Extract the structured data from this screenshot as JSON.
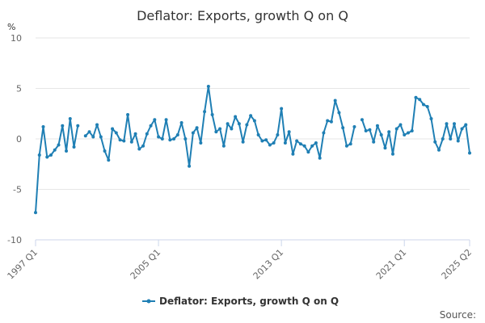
{
  "chart_data": {
    "type": "line",
    "title": "Deflator: Exports, growth Q on Q",
    "ylabel": "%",
    "xlabel": "",
    "ylim": [
      -10,
      10
    ],
    "y_ticks": [
      10,
      5,
      0,
      -5,
      -10
    ],
    "x_ticks": [
      {
        "index": 0,
        "label": "1997 Q1"
      },
      {
        "index": 32,
        "label": "2005 Q1"
      },
      {
        "index": 64,
        "label": "2013 Q1"
      },
      {
        "index": 96,
        "label": "2021 Q1"
      },
      {
        "index": 113,
        "label": "2025 Q2"
      }
    ],
    "x_start": "1997 Q1",
    "x_end": "2025 Q2",
    "grid": true,
    "legend_position": "bottom",
    "series": [
      {
        "name": "Deflator: Exports, growth Q on Q",
        "color": "#1f7fb4",
        "values": [
          -7.3,
          -1.6,
          1.2,
          -1.8,
          -1.6,
          -1.1,
          -0.6,
          1.3,
          -1.2,
          2.0,
          -0.8,
          1.3,
          null,
          0.3,
          0.7,
          0.2,
          1.4,
          0.2,
          -1.2,
          -2.1,
          1.0,
          0.6,
          -0.1,
          -0.2,
          2.4,
          -0.3,
          0.5,
          -1.0,
          -0.7,
          0.5,
          1.3,
          1.9,
          0.2,
          0.0,
          1.9,
          -0.1,
          0.0,
          0.4,
          1.6,
          0.0,
          -2.7,
          0.6,
          1.1,
          -0.4,
          2.7,
          5.2,
          2.4,
          0.7,
          1.0,
          -0.7,
          1.5,
          1.0,
          2.2,
          1.5,
          -0.3,
          1.4,
          2.3,
          1.8,
          0.4,
          -0.2,
          -0.1,
          -0.6,
          -0.4,
          0.4,
          3.0,
          -0.4,
          0.7,
          -1.5,
          -0.2,
          -0.5,
          -0.7,
          -1.3,
          -0.7,
          -0.4,
          -1.9,
          0.6,
          1.8,
          1.7,
          3.8,
          2.6,
          1.1,
          -0.7,
          -0.5,
          1.2,
          null,
          1.9,
          0.8,
          0.9,
          -0.3,
          1.3,
          0.4,
          -0.9,
          0.7,
          -1.5,
          1.0,
          1.4,
          0.4,
          0.6,
          0.8,
          4.1,
          3.9,
          3.4,
          3.2,
          2.0,
          -0.3,
          -1.1,
          0.0,
          1.5,
          0.0,
          1.5,
          -0.2,
          1.0,
          1.4,
          -1.4
        ]
      }
    ]
  },
  "legend": {
    "label": "Deflator: Exports, growth Q on Q"
  },
  "credits": {
    "text": "Source:"
  }
}
